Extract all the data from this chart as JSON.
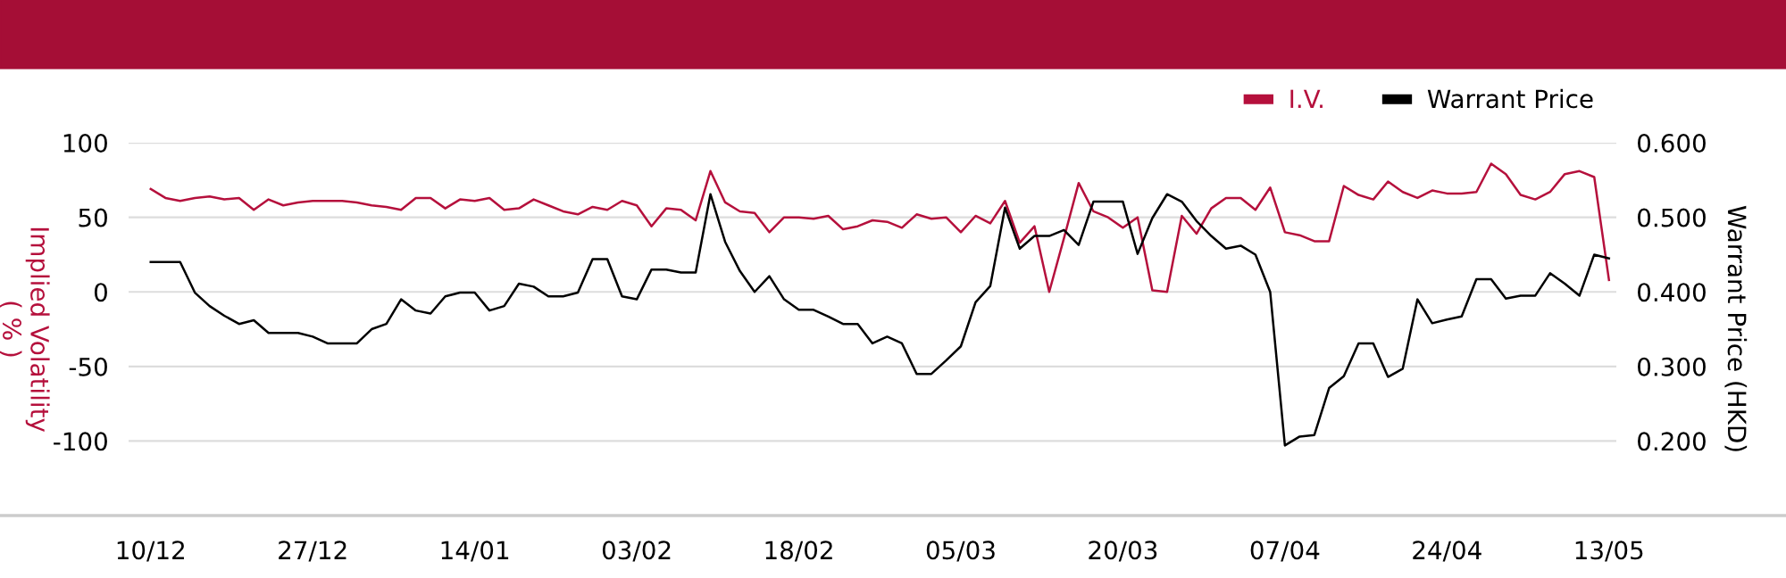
{
  "chart_data": {
    "type": "line",
    "categories": [
      "10/12",
      null,
      null,
      null,
      null,
      null,
      null,
      null,
      null,
      null,
      null,
      "27/12",
      null,
      null,
      null,
      null,
      null,
      null,
      null,
      null,
      null,
      null,
      "14/01",
      null,
      null,
      null,
      null,
      null,
      null,
      null,
      null,
      null,
      null,
      "03/02",
      null,
      null,
      null,
      null,
      null,
      null,
      null,
      null,
      null,
      null,
      "18/02",
      null,
      null,
      null,
      null,
      null,
      null,
      null,
      null,
      null,
      null,
      "05/03",
      null,
      null,
      null,
      null,
      null,
      null,
      null,
      null,
      null,
      null,
      "20/03",
      null,
      null,
      null,
      null,
      null,
      null,
      null,
      null,
      null,
      null,
      "07/04",
      null,
      null,
      null,
      null,
      null,
      null,
      null,
      null,
      null,
      null,
      "24/04",
      null,
      null,
      null,
      null,
      null,
      null,
      null,
      null,
      null,
      null,
      "13/05"
    ],
    "series": [
      {
        "name": "I.V.",
        "color": "#b5103c",
        "values": [
          69,
          63,
          61,
          63,
          64,
          62,
          63,
          55,
          62,
          58,
          60,
          61,
          61,
          61,
          60,
          58,
          57,
          55,
          63,
          63,
          56,
          62,
          61,
          63,
          55,
          56,
          62,
          58,
          54,
          52,
          57,
          55,
          61,
          58,
          44,
          56,
          55,
          48,
          81,
          60,
          54,
          53,
          40,
          50,
          50,
          49,
          51,
          42,
          44,
          48,
          47,
          43,
          52,
          49,
          50,
          40,
          51,
          46,
          61,
          33,
          44,
          0,
          36,
          73,
          54,
          50,
          43,
          50,
          1,
          0,
          51,
          39,
          56,
          63,
          63,
          55,
          70,
          40,
          38,
          34,
          34,
          71,
          65,
          62,
          74,
          67,
          63,
          68,
          66,
          66,
          67,
          86,
          79,
          65,
          62,
          67,
          79,
          81,
          77,
          8
        ]
      },
      {
        "name": "Warrant Price",
        "color": "#000000",
        "axis": "y2",
        "values": [
          0.44,
          0.44,
          0.44,
          0.399,
          0.381,
          0.368,
          0.357,
          0.362,
          0.345,
          0.345,
          0.345,
          0.34,
          0.331,
          0.331,
          0.331,
          0.35,
          0.357,
          0.39,
          0.375,
          0.371,
          0.394,
          0.399,
          0.399,
          0.375,
          0.381,
          0.411,
          0.407,
          0.394,
          0.394,
          0.399,
          0.444,
          0.444,
          0.394,
          0.39,
          0.43,
          0.43,
          0.426,
          0.426,
          0.531,
          0.467,
          0.428,
          0.4,
          0.421,
          0.39,
          0.376,
          0.376,
          0.367,
          0.357,
          0.357,
          0.331,
          0.34,
          0.331,
          0.29,
          0.29,
          0.308,
          0.327,
          0.386,
          0.408,
          0.513,
          0.458,
          0.475,
          0.475,
          0.483,
          0.463,
          0.521,
          0.521,
          0.521,
          0.451,
          0.499,
          0.531,
          0.521,
          0.495,
          0.475,
          0.458,
          0.462,
          0.45,
          0.4,
          0.194,
          0.206,
          0.208,
          0.271,
          0.287,
          0.331,
          0.331,
          0.286,
          0.297,
          0.39,
          0.358,
          0.363,
          0.367,
          0.417,
          0.417,
          0.391,
          0.395,
          0.395,
          0.425,
          0.411,
          0.395,
          0.45,
          0.445
        ]
      }
    ],
    "ylabel": "Implied Volatility\n( % )",
    "y2label": "Warrant Price (HKD)",
    "ylim": [
      -150,
      100
    ],
    "yticks": [
      -100,
      -50,
      0,
      50,
      100
    ],
    "y2lim": [
      0.1,
      0.6
    ],
    "y2ticks": [
      {
        "value": 0.2,
        "label": "0.200"
      },
      {
        "value": 0.3,
        "label": "0.300"
      },
      {
        "value": 0.4,
        "label": "0.400"
      },
      {
        "value": 0.5,
        "label": "0.500"
      },
      {
        "value": 0.6,
        "label": "0.600"
      }
    ],
    "grid": "y",
    "legend": "top right",
    "marker": "none",
    "line_style": "solid"
  }
}
